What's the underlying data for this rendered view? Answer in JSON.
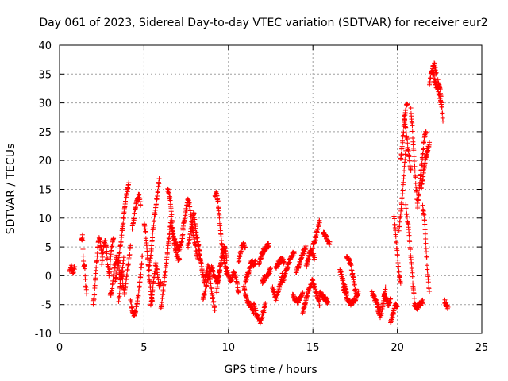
{
  "chart_data": {
    "type": "scatter",
    "title": "Day 061 of 2023, Sidereal Day-to-day VTEC variation (SDTVAR) for receiver eur2",
    "xlabel": "GPS time / hours",
    "ylabel": "SDTVAR / TECUs",
    "xlim": [
      0,
      25
    ],
    "ylim": [
      -10,
      40
    ],
    "xticks": [
      0,
      5,
      10,
      15,
      20,
      25
    ],
    "yticks": [
      -10,
      -5,
      0,
      5,
      10,
      15,
      20,
      25,
      30,
      35,
      40
    ],
    "grid": true,
    "marker": "+",
    "color": "#ff0000",
    "segments": [
      {
        "x0": 0.6,
        "x1": 0.9,
        "y": [
          0.8,
          1.5,
          0.5,
          1.6
        ]
      },
      {
        "x0": 1.3,
        "x1": 1.6,
        "y": [
          6.2,
          6.8,
          1.8,
          2.0,
          -1.5,
          -3.0
        ]
      },
      {
        "x0": 2.0,
        "x1": 2.5,
        "y": [
          -5.0,
          -3.0,
          0.5,
          3.0,
          6.0,
          6.5,
          5.5,
          4.0
        ]
      },
      {
        "x0": 2.5,
        "x1": 3.2,
        "y": [
          2.0,
          4.5,
          6.0,
          5.0,
          2.0,
          0.0,
          3.0,
          5.5,
          6.5
        ]
      },
      {
        "x0": 3.0,
        "x1": 3.8,
        "y": [
          -3.5,
          -2.5,
          0.5,
          2.0,
          3.5,
          2.0,
          -1.0,
          0.5,
          3.0
        ]
      },
      {
        "x0": 3.3,
        "x1": 4.1,
        "y": [
          -1.0,
          1.0,
          3.5,
          6.0,
          9.0,
          12.0,
          14.5,
          15.8
        ]
      },
      {
        "x0": 3.5,
        "x1": 4.2,
        "y": [
          -4.5,
          -2.0,
          0.5,
          -1.5,
          -3.0,
          -1.0,
          1.0,
          3.0,
          5.0
        ]
      },
      {
        "x0": 4.2,
        "x1": 4.9,
        "y": [
          -4.0,
          -6.2,
          -6.8,
          -6.0,
          -5.0,
          -2.5,
          0.0,
          3.5
        ]
      },
      {
        "x0": 4.3,
        "x1": 4.8,
        "y": [
          8.0,
          10.0,
          12.0,
          13.5,
          14.0,
          12.5
        ]
      },
      {
        "x0": 5.0,
        "x1": 5.5,
        "y": [
          9.0,
          8.0,
          5.0,
          2.0,
          -1.0,
          -3.0,
          -4.5
        ]
      },
      {
        "x0": 5.3,
        "x1": 5.9,
        "y": [
          1.0,
          4.0,
          8.0,
          11.0,
          14.0,
          16.5
        ]
      },
      {
        "x0": 5.4,
        "x1": 6.0,
        "y": [
          -5.0,
          -3.0,
          0.0,
          2.0,
          0.5,
          -2.0,
          -1.0
        ]
      },
      {
        "x0": 6.0,
        "x1": 6.6,
        "y": [
          -5.5,
          -4.0,
          -1.5,
          0.5,
          3.0,
          5.0,
          7.5,
          10.0
        ]
      },
      {
        "x0": 6.4,
        "x1": 7.1,
        "y": [
          15.0,
          14.0,
          12.0,
          8.0,
          5.5,
          4.0,
          3.0,
          2.5
        ]
      },
      {
        "x0": 6.6,
        "x1": 7.3,
        "y": [
          9.0,
          7.0,
          6.0,
          5.0,
          4.5,
          5.5,
          7.0
        ]
      },
      {
        "x0": 7.3,
        "x1": 8.2,
        "y": [
          8.0,
          10.0,
          12.0,
          13.5,
          11.0,
          8.5,
          6.0,
          4.5,
          3.0
        ]
      },
      {
        "x0": 7.6,
        "x1": 8.3,
        "y": [
          5.0,
          7.0,
          9.0,
          11.0,
          8.0,
          6.0,
          4.0
        ]
      },
      {
        "x0": 8.2,
        "x1": 9.2,
        "y": [
          5.0,
          3.0,
          1.0,
          -1.0,
          0.5,
          2.0,
          -1.5,
          -4.0,
          -6.0
        ]
      },
      {
        "x0": 8.5,
        "x1": 9.5,
        "y": [
          -4.0,
          -2.0,
          0.0,
          1.5,
          0.0,
          -1.0,
          0.5
        ]
      },
      {
        "x0": 9.2,
        "x1": 9.9,
        "y": [
          13.5,
          14.5,
          13.0,
          10.0,
          7.0,
          5.0,
          3.0,
          2.0,
          0.5
        ]
      },
      {
        "x0": 9.3,
        "x1": 9.9,
        "y": [
          -3.0,
          0.0,
          2.0,
          4.0,
          5.0,
          3.0
        ]
      },
      {
        "x0": 9.9,
        "x1": 10.6,
        "y": [
          1.0,
          0.0,
          -1.0,
          -0.5,
          0.5,
          0.0,
          -1.0,
          -3.0
        ]
      },
      {
        "x0": 10.6,
        "x1": 11.0,
        "y": [
          2.5,
          4.0,
          5.0,
          5.5,
          5.0
        ]
      },
      {
        "x0": 10.9,
        "x1": 11.5,
        "y": [
          -2.0,
          -3.5,
          -4.5,
          -5.0,
          -5.5,
          -6.5
        ]
      },
      {
        "x0": 11.0,
        "x1": 11.6,
        "y": [
          -1.0,
          0.0,
          1.0,
          2.5,
          2.0,
          2.5
        ]
      },
      {
        "x0": 11.5,
        "x1": 12.2,
        "y": [
          -5.0,
          -6.0,
          -7.0,
          -7.5,
          -8.0,
          -7.0,
          -6.0,
          -5.0
        ]
      },
      {
        "x0": 11.8,
        "x1": 12.4,
        "y": [
          2.0,
          3.5,
          4.5,
          5.0,
          5.5
        ]
      },
      {
        "x0": 12.0,
        "x1": 12.5,
        "y": [
          -1.0,
          -0.5,
          0.0,
          0.5,
          1.0
        ]
      },
      {
        "x0": 12.6,
        "x1": 13.2,
        "y": [
          -2.0,
          -3.0,
          -4.0,
          -3.5,
          -2.0,
          -1.0,
          0.5
        ]
      },
      {
        "x0": 12.8,
        "x1": 13.3,
        "y": [
          1.5,
          2.0,
          2.5,
          3.0,
          2.0
        ]
      },
      {
        "x0": 13.2,
        "x1": 13.9,
        "y": [
          -1.0,
          0.0,
          1.5,
          2.5,
          3.5,
          4.0
        ]
      },
      {
        "x0": 13.8,
        "x1": 14.4,
        "y": [
          -3.5,
          -4.0,
          -4.5,
          -4.0,
          -3.0
        ]
      },
      {
        "x0": 14.0,
        "x1": 14.6,
        "y": [
          0.5,
          1.5,
          2.5,
          3.5,
          4.5,
          5.0
        ]
      },
      {
        "x0": 14.4,
        "x1": 15.0,
        "y": [
          -6.5,
          -5.0,
          -3.5,
          -2.5,
          -1.5,
          -0.5
        ]
      },
      {
        "x0": 14.6,
        "x1": 15.1,
        "y": [
          1.5,
          3.0,
          4.5,
          4.0,
          3.0
        ]
      },
      {
        "x0": 15.0,
        "x1": 15.4,
        "y": [
          -1.5,
          -2.0,
          -3.0,
          -4.0,
          -5.0
        ]
      },
      {
        "x0": 15.0,
        "x1": 15.4,
        "y": [
          5.0,
          6.0,
          7.0,
          8.5,
          9.5
        ]
      },
      {
        "x0": 15.4,
        "x1": 15.9,
        "y": [
          -3.0,
          -3.5,
          -4.0,
          -4.5
        ]
      },
      {
        "x0": 15.6,
        "x1": 16.0,
        "y": [
          7.5,
          6.5,
          5.5
        ]
      },
      {
        "x0": 16.6,
        "x1": 17.0,
        "y": [
          1.0,
          0.0,
          -1.0,
          -2.0,
          -3.0
        ]
      },
      {
        "x0": 16.8,
        "x1": 17.3,
        "y": [
          -2.0,
          -3.0,
          -4.0,
          -4.5,
          -5.0
        ]
      },
      {
        "x0": 17.0,
        "x1": 17.6,
        "y": [
          3.5,
          3.0,
          2.0,
          0.0,
          -2.0,
          -3.5
        ]
      },
      {
        "x0": 17.2,
        "x1": 17.7,
        "y": [
          -5.0,
          -4.5,
          -4.0,
          -3.0
        ]
      },
      {
        "x0": 18.5,
        "x1": 19.0,
        "y": [
          -3.0,
          -4.0,
          -5.0,
          -6.0
        ]
      },
      {
        "x0": 18.8,
        "x1": 19.3,
        "y": [
          -5.0,
          -6.5,
          -7.0,
          -6.0,
          -4.0,
          -2.0
        ]
      },
      {
        "x0": 19.2,
        "x1": 19.6,
        "y": [
          -3.5,
          -4.0,
          -5.0,
          -4.0
        ]
      },
      {
        "x0": 19.6,
        "x1": 20.0,
        "y": [
          -8.0,
          -7.0,
          -6.0,
          -5.0,
          -5.5
        ]
      },
      {
        "x0": 19.8,
        "x1": 20.2,
        "y": [
          10.5,
          8.0,
          5.0,
          2.5,
          0.0,
          -1.0
        ]
      },
      {
        "x0": 20.1,
        "x1": 20.5,
        "y": [
          8.0,
          11.0,
          14.0,
          18.0,
          22.0
        ]
      },
      {
        "x0": 20.2,
        "x1": 20.6,
        "y": [
          20.0,
          22.0,
          24.0,
          26.0,
          28.0,
          29.5,
          30.0
        ]
      },
      {
        "x0": 20.4,
        "x1": 20.8,
        "y": [
          28.0,
          26.0,
          24.0,
          22.0,
          20.0,
          18.0
        ]
      },
      {
        "x0": 20.5,
        "x1": 21.0,
        "y": [
          12.0,
          10.0,
          8.0,
          5.0,
          2.0,
          -1.0,
          -4.0
        ]
      },
      {
        "x0": 20.8,
        "x1": 21.2,
        "y": [
          29.0,
          26.0,
          22.0,
          18.0,
          15.0,
          12.0
        ]
      },
      {
        "x0": 21.0,
        "x1": 21.5,
        "y": [
          -5.0,
          -5.5,
          -5.0,
          -4.5
        ]
      },
      {
        "x0": 21.2,
        "x1": 21.7,
        "y": [
          12.0,
          15.0,
          18.0,
          21.0,
          24.0,
          25.0
        ]
      },
      {
        "x0": 21.4,
        "x1": 21.9,
        "y": [
          15.0,
          17.0,
          19.0,
          20.5,
          22.0,
          23.0
        ]
      },
      {
        "x0": 21.5,
        "x1": 21.9,
        "y": [
          12.0,
          10.0,
          5.0,
          0.0,
          -3.0
        ]
      },
      {
        "x0": 21.9,
        "x1": 22.3,
        "y": [
          33.0,
          35.0,
          36.0,
          36.8,
          35.0
        ]
      },
      {
        "x0": 22.1,
        "x1": 22.6,
        "y": [
          36.0,
          34.0,
          33.0,
          32.5,
          31.0,
          29.5
        ]
      },
      {
        "x0": 22.4,
        "x1": 22.7,
        "y": [
          34.0,
          32.0,
          27.0
        ]
      },
      {
        "x0": 22.8,
        "x1": 23.0,
        "y": [
          -4.5,
          -5.0,
          -5.5
        ]
      }
    ]
  }
}
